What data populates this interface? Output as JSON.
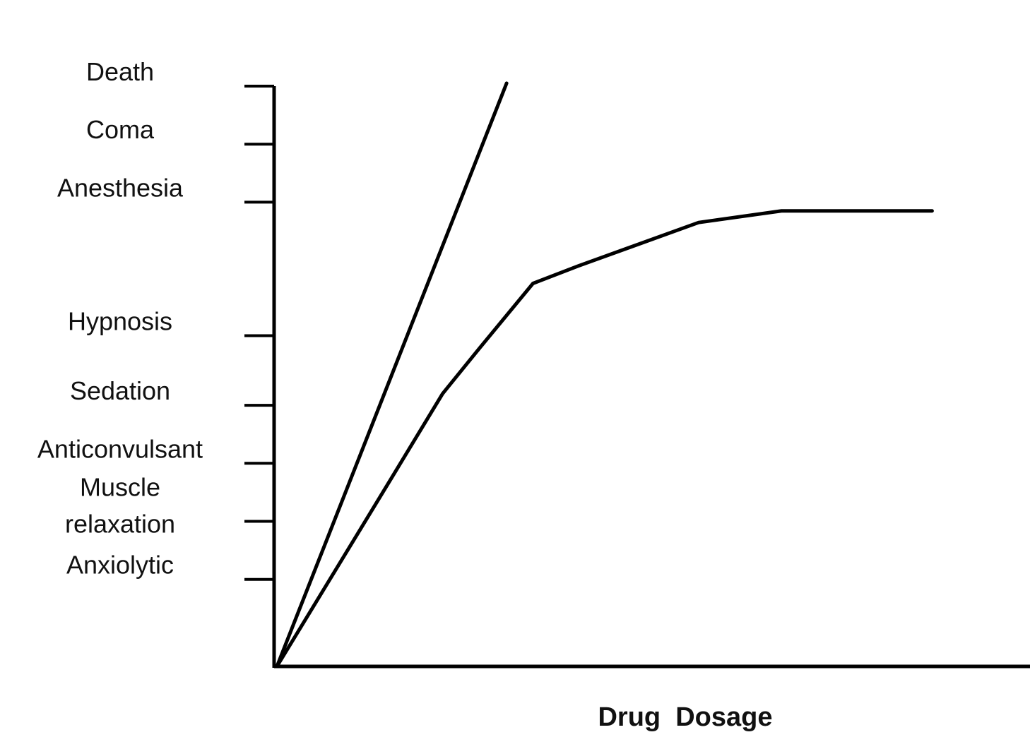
{
  "chart_data": {
    "type": "line",
    "title": "",
    "xlabel": "Drug  Dosage",
    "ylabel": "",
    "grid": false,
    "legend": "none",
    "xlim": [
      0,
      100
    ],
    "ylim": [
      0,
      100
    ],
    "y_ticks": [
      {
        "value": 15,
        "label": [
          "Anxiolytic"
        ]
      },
      {
        "value": 25,
        "label": [
          "Muscle",
          "relaxation"
        ]
      },
      {
        "value": 35,
        "label": [
          "Anticonvulsant"
        ]
      },
      {
        "value": 45,
        "label": [
          "Sedation"
        ]
      },
      {
        "value": 57,
        "label": [
          "Hypnosis"
        ]
      },
      {
        "value": 80,
        "label": [
          "Anesthesia"
        ]
      },
      {
        "value": 90,
        "label": [
          "Coma"
        ]
      },
      {
        "value": 100,
        "label": [
          "Death"
        ]
      }
    ],
    "series": [
      {
        "x": [
          0,
          30.5
        ],
        "y": [
          0,
          100.5
        ]
      },
      {
        "x": [
          0,
          15,
          22,
          27,
          34,
          40,
          56,
          67,
          87
        ],
        "y": [
          0,
          32,
          47,
          55,
          66,
          69,
          76.5,
          78.5,
          78.5
        ]
      }
    ],
    "color": "#000000"
  }
}
